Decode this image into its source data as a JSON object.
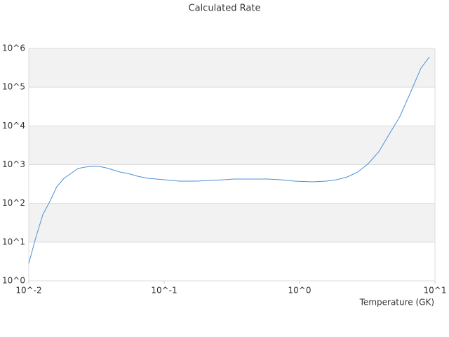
{
  "chart_data": {
    "type": "line",
    "title": "Calculated Rate",
    "x_label": "Temperature (GK)",
    "x_scale": "log",
    "y_scale": "log",
    "grid": true,
    "band_color": "#f2f2f2",
    "xlim": [
      0.01,
      10
    ],
    "ylim": [
      1,
      1000000
    ],
    "xticks": [
      {
        "value": 0.01,
        "label": "10^-2"
      },
      {
        "value": 0.1,
        "label": "10^-1"
      },
      {
        "value": 1,
        "label": "10^0"
      },
      {
        "value": 10,
        "label": "10^1"
      }
    ],
    "yticks": [
      {
        "value": 1,
        "label": "10^0"
      },
      {
        "value": 10,
        "label": "10^1"
      },
      {
        "value": 100,
        "label": "10^2"
      },
      {
        "value": 1000,
        "label": "10^3"
      },
      {
        "value": 10000,
        "label": "10^4"
      },
      {
        "value": 100000,
        "label": "10^5"
      },
      {
        "value": 1000000,
        "label": "10^6"
      }
    ],
    "x": [
      0.01,
      0.01127,
      0.0127,
      0.0143,
      0.0161,
      0.0182,
      0.0205,
      0.0231,
      0.026,
      0.0292,
      0.033,
      0.0372,
      0.0419,
      0.0472,
      0.0564,
      0.0635,
      0.076,
      0.1,
      0.1285,
      0.173,
      0.22,
      0.279,
      0.328,
      0.399,
      0.57,
      0.724,
      0.92,
      1.24,
      1.57,
      1.88,
      2.25,
      2.69,
      3.22,
      3.85,
      4.6,
      5.5,
      6.59,
      7.88,
      9.1
    ],
    "series": [
      {
        "color": "#4a90d9",
        "values": [
          2.8,
          13,
          51,
          112,
          268,
          443,
          593,
          794,
          863,
          900,
          900,
          828,
          731,
          645,
          569,
          502,
          443,
          408,
          375,
          375,
          391,
          408,
          425,
          425,
          425,
          408,
          375,
          360,
          375,
          408,
          482,
          645,
          1064,
          2163,
          6140,
          17400,
          72100,
          310000,
          605000
        ]
      }
    ]
  }
}
